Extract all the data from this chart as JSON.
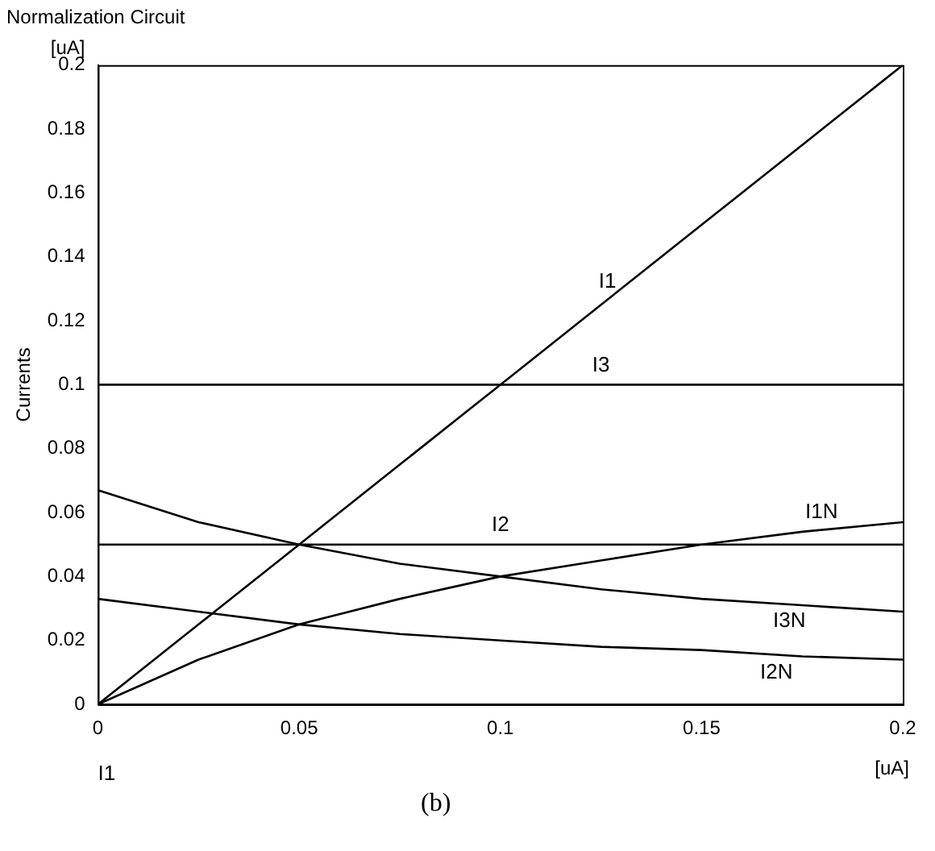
{
  "chart_data": {
    "type": "line",
    "title": "Normalization Circuit",
    "xlabel": "I1",
    "ylabel": "Currents",
    "annotations": [
      "[uA]",
      "[uA]",
      "(b)"
    ],
    "x": [
      0,
      0.025,
      0.05,
      0.075,
      0.1,
      0.125,
      0.15,
      0.175,
      0.2
    ],
    "series": [
      {
        "name": "I1",
        "color": "#000000",
        "values": [
          0,
          0.025,
          0.05,
          0.075,
          0.1,
          0.125,
          0.15,
          0.175,
          0.2
        ]
      },
      {
        "name": "I3",
        "color": "#000000",
        "values": [
          0.1,
          0.1,
          0.1,
          0.1,
          0.1,
          0.1,
          0.1,
          0.1,
          0.1
        ]
      },
      {
        "name": "I2",
        "color": "#000000",
        "values": [
          0.05,
          0.05,
          0.05,
          0.05,
          0.05,
          0.05,
          0.05,
          0.05,
          0.05
        ]
      },
      {
        "name": "I1N",
        "color": "#000000",
        "values": [
          0,
          0.014,
          0.025,
          0.033,
          0.04,
          0.045,
          0.05,
          0.054,
          0.057
        ]
      },
      {
        "name": "I3N",
        "color": "#000000",
        "values": [
          0.067,
          0.057,
          0.05,
          0.044,
          0.04,
          0.036,
          0.033,
          0.031,
          0.029
        ]
      },
      {
        "name": "I2N",
        "color": "#000000",
        "values": [
          0.033,
          0.029,
          0.025,
          0.022,
          0.02,
          0.018,
          0.017,
          0.015,
          0.014
        ]
      }
    ],
    "xlim": [
      0,
      0.2
    ],
    "xticks": [
      0,
      0.05,
      0.1,
      0.15,
      0.2
    ],
    "ylim": [
      0,
      0.2
    ],
    "yticks": [
      0,
      0.02,
      0.04,
      0.06,
      0.08,
      0.1,
      0.12,
      0.14,
      0.16,
      0.18,
      0.2
    ],
    "grid": false,
    "legend": false,
    "marker": "none",
    "line_style": "solid"
  }
}
